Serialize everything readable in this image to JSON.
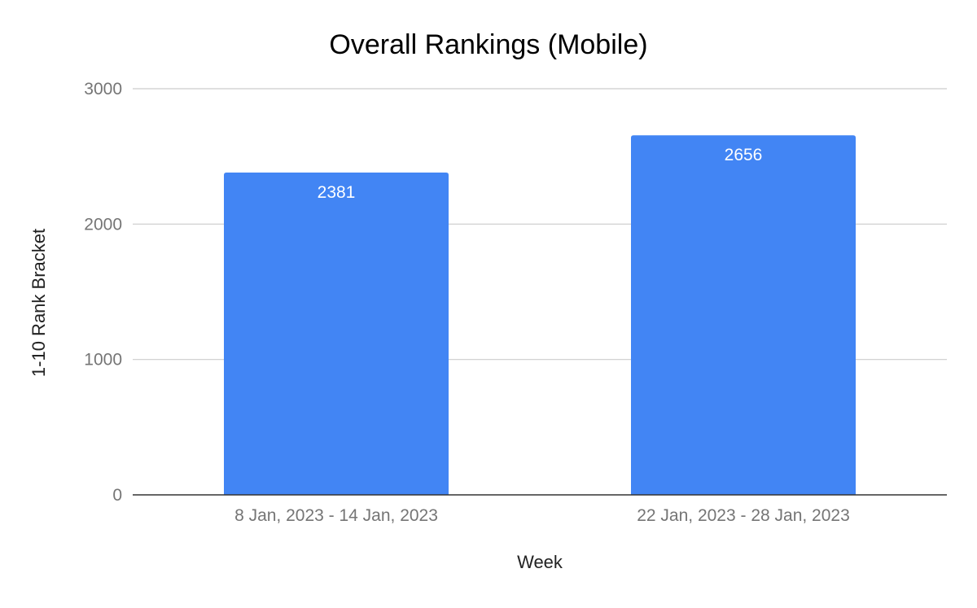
{
  "chart_data": {
    "type": "bar",
    "title": "Overall Rankings (Mobile)",
    "xlabel": "Week",
    "ylabel": "1-10 Rank Bracket",
    "categories": [
      "8 Jan, 2023 - 14 Jan, 2023",
      "22 Jan, 2023 - 28 Jan, 2023"
    ],
    "values": [
      2381,
      2656
    ],
    "data_labels": [
      "2381",
      "2656"
    ],
    "ylim": [
      0,
      3000
    ],
    "yticks": [
      0,
      1000,
      2000,
      3000
    ],
    "ytick_labels": [
      "0",
      "1000",
      "2000",
      "3000"
    ],
    "grid": true,
    "legend": "none",
    "colors": {
      "bar": "#4285f4",
      "grid": "#cccccc",
      "axis": "#333333",
      "tick_text": "#757575",
      "title_text": "#000000",
      "axis_title_text": "#222222",
      "data_label_text": "#ffffff"
    }
  }
}
